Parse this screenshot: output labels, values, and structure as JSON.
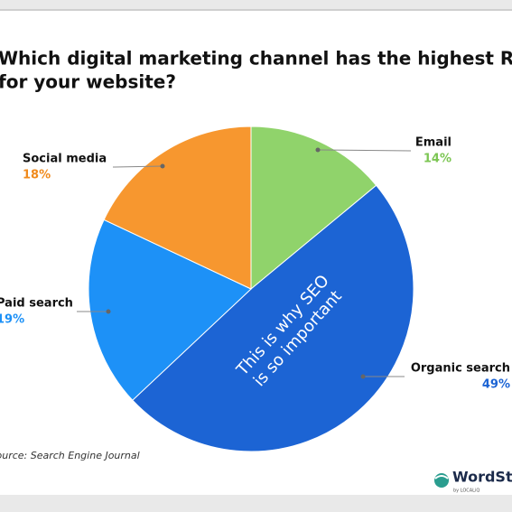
{
  "chart_data": {
    "type": "pie",
    "title": [
      "Which digital marketing channel has the highest ROI",
      "for your website?"
    ],
    "categories": [
      "Email",
      "Organic search",
      "Paid search",
      "Social media"
    ],
    "values": [
      14,
      49,
      19,
      18
    ],
    "value_labels": [
      "14%",
      "49%",
      "19%",
      "18%"
    ],
    "colors": [
      "#90d36b",
      "#1c64d4",
      "#1d91f7",
      "#f7972f"
    ],
    "label_colors": [
      "#7cc653",
      "#1c64d4",
      "#1d91f7",
      "#f08a1c"
    ],
    "annotation": [
      "This is why SEO",
      "is so important"
    ],
    "source": "Data source: Search Engine Journal"
  },
  "logo": {
    "name": "WordStream",
    "byline": "by LOCALiQ"
  }
}
